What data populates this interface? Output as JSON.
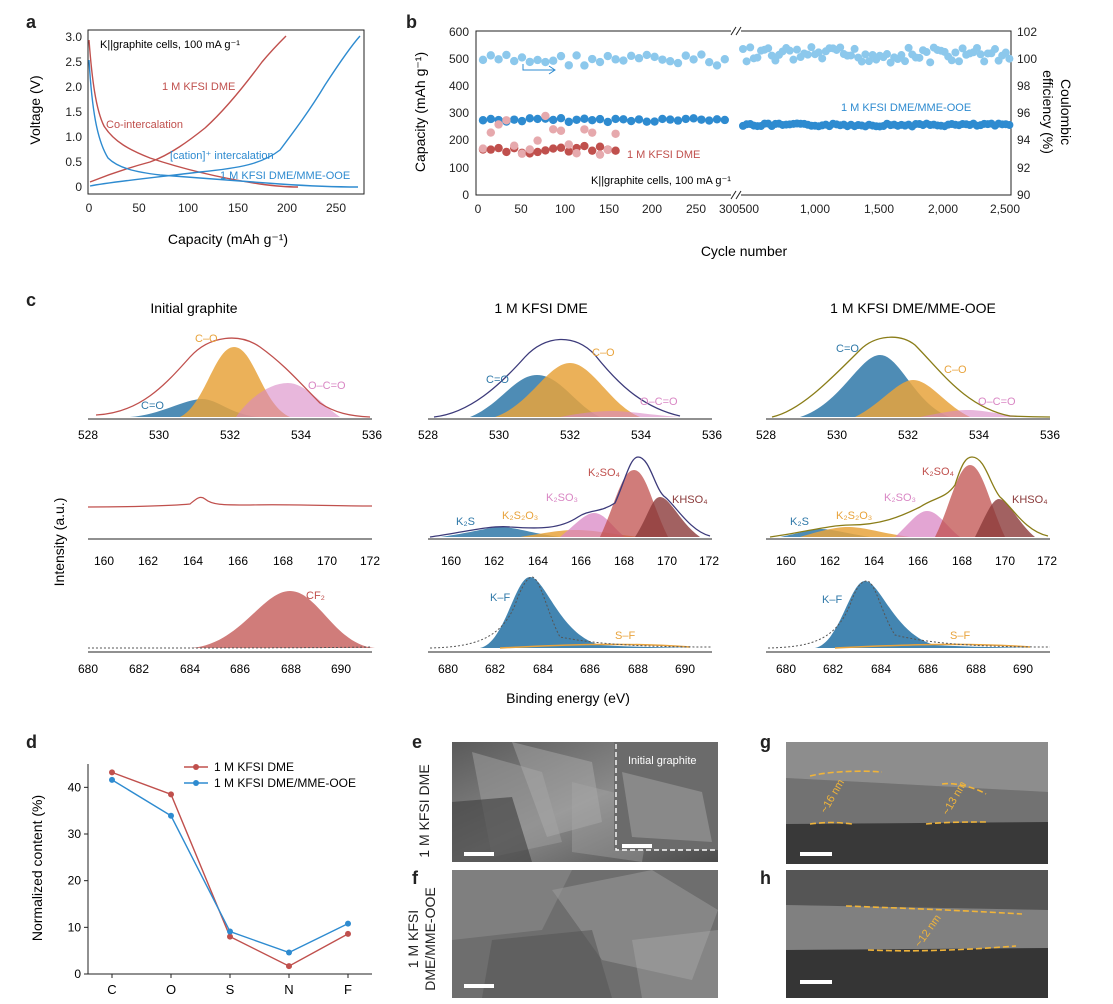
{
  "figure": {
    "panel_labels": {
      "a": "a",
      "b": "b",
      "c": "c",
      "d": "d",
      "e": "e",
      "f": "f",
      "g": "g",
      "h": "h"
    },
    "colors": {
      "red": "#c0504d",
      "blue": "#2e8bd0",
      "lightblue": "#8cc8ec",
      "pink": "#e6a9ad",
      "orange": "#e8a33c",
      "steel": "#2f78a8",
      "mauve": "#d987c4",
      "brown": "#8b3a3a",
      "olive": "#8a7d18",
      "navy": "#3c3a7a"
    }
  },
  "panel_a": {
    "annotation": "K||graphite cells, 100 mA g⁻¹",
    "xlabel": "Capacity (mAh g⁻¹)",
    "ylabel": "Voltage (V)",
    "xticks": [
      "0",
      "50",
      "100",
      "150",
      "200",
      "250"
    ],
    "yticks": [
      "0",
      "0.5",
      "1.0",
      "1.5",
      "2.0",
      "2.5",
      "3.0"
    ],
    "labels": {
      "dme": "1 M KFSI DME",
      "coint": "Co-intercalation",
      "cation": "[cation]⁺ intercalation",
      "ooe": "1 M KFSI DME/MME-OOE"
    }
  },
  "panel_b": {
    "xlabel": "Cycle number",
    "ylabel_left": "Capacity (mAh g⁻¹)",
    "ylabel_right_1": "Coulombic",
    "ylabel_right_2": "efficiency (%)",
    "xticks_left": [
      "0",
      "50",
      "100",
      "150",
      "200",
      "250",
      "300"
    ],
    "xticks_right": [
      "500",
      "1,000",
      "1,500",
      "2,000",
      "2,500"
    ],
    "yticks_left": [
      "0",
      "100",
      "200",
      "300",
      "400",
      "500",
      "600"
    ],
    "yticks_right": [
      "90",
      "92",
      "94",
      "96",
      "98",
      "100",
      "102"
    ],
    "labels": {
      "ooe": "1 M KFSI DME/MME-OOE",
      "dme": "1 M KFSI DME",
      "cells": "K||graphite cells, 100 mA g⁻¹"
    }
  },
  "panel_c": {
    "ylabel": "Intensity (a.u.)",
    "xlabel": "Binding energy (eV)",
    "col_titles": [
      "Initial graphite",
      "1 M KFSI DME",
      "1 M KFSI DME/MME-OOE"
    ],
    "o_ticks": [
      "528",
      "530",
      "532",
      "534",
      "536"
    ],
    "s_ticks": [
      "160",
      "162",
      "164",
      "166",
      "168",
      "170",
      "172"
    ],
    "f_ticks": [
      "680",
      "682",
      "684",
      "686",
      "688",
      "690"
    ],
    "o_labels": {
      "co": "C–O",
      "cdo": "C=O",
      "ocdo": "O–C=O"
    },
    "s_labels": {
      "k2s": "K₂S",
      "k2s2o3": "K₂S₂O₃",
      "k2so3": "K₂SO₃",
      "k2so4": "K₂SO₄",
      "khso4": "KHSO₄"
    },
    "f_labels": {
      "cf2": "CF₂",
      "kf": "K–F",
      "sf": "S–F"
    }
  },
  "panel_d": {
    "ylabel": "Normalized content (%)",
    "legend": [
      "1 M KFSI DME",
      "1 M KFSI DME/MME-OOE"
    ],
    "chart_data": {
      "type": "line",
      "categories": [
        "C",
        "O",
        "S",
        "N",
        "F"
      ],
      "series": [
        {
          "name": "1 M KFSI DME",
          "values": [
            43.2,
            38.5,
            8.0,
            1.7,
            8.6
          ]
        },
        {
          "name": "1 M KFSI DME/MME-OOE",
          "values": [
            41.6,
            33.9,
            9.1,
            4.6,
            10.8
          ]
        }
      ],
      "ylim": [
        0,
        45
      ],
      "yticks": [
        "0",
        "10",
        "20",
        "30",
        "40"
      ]
    }
  },
  "panel_e": {
    "side": "1 M KFSI DME",
    "inset": "Initial graphite"
  },
  "panel_f": {
    "side_1": "1 M KFSI",
    "side_2": "DME/MME-OOE"
  },
  "panel_g": {
    "m1": "~16 nm",
    "m2": "~13 nm"
  },
  "panel_h": {
    "m1": "~12 nm"
  }
}
